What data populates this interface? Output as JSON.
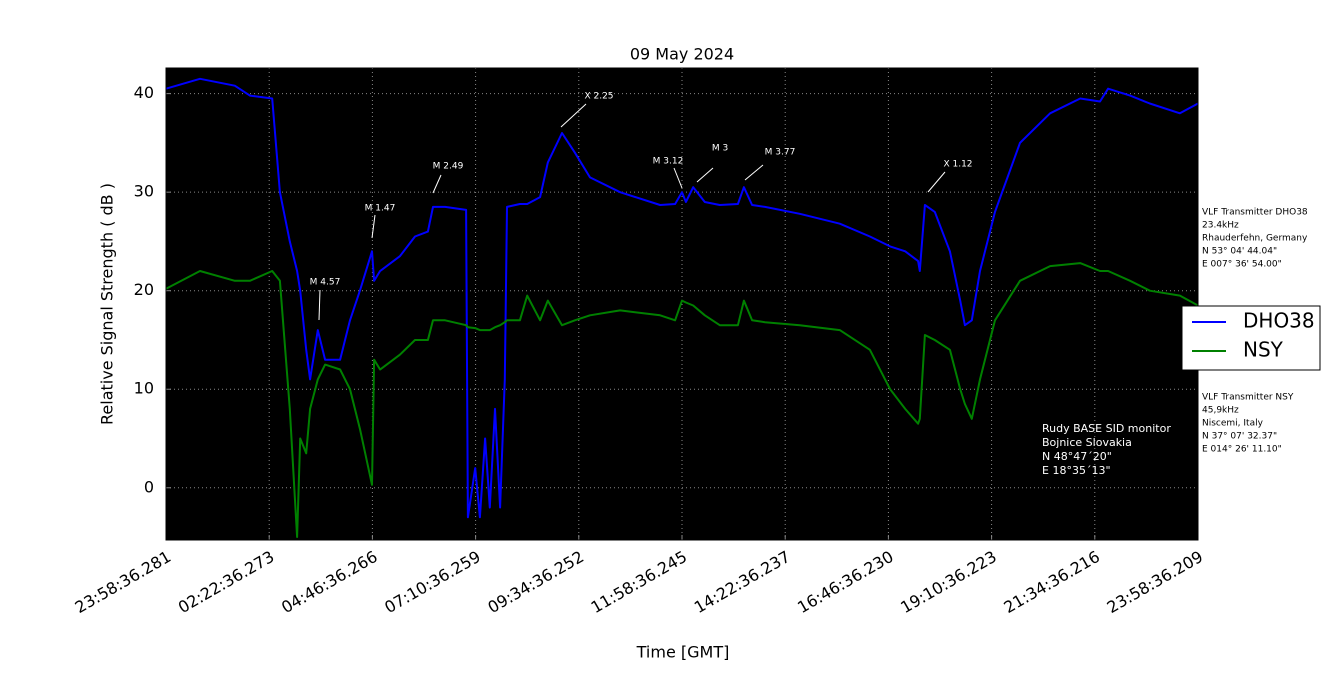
{
  "chart_data": {
    "type": "line",
    "title": "09 May 2024",
    "xlabel": "Time [GMT]",
    "ylabel": "Relative Signal Strength ( dB )",
    "x": [
      0,
      0.79,
      1.6,
      1.95,
      2.47,
      2.65,
      2.88,
      3.05,
      3.12,
      3.26,
      3.35,
      3.53,
      3.7,
      4.05,
      4.28,
      4.51,
      4.79,
      4.84,
      4.98,
      5.44,
      5.79,
      6.09,
      6.21,
      6.49,
      6.98,
      7.02,
      7.19,
      7.3,
      7.42,
      7.53,
      7.65,
      7.77,
      7.88,
      7.93,
      8.23,
      8.4,
      8.7,
      8.88,
      9.21,
      9.51,
      9.86,
      10.56,
      11.49,
      11.84,
      12.0,
      12.09,
      12.26,
      12.53,
      12.88,
      13.3,
      13.44,
      13.63,
      13.93,
      14.74,
      15.67,
      16.37,
      16.84,
      17.19,
      17.49,
      17.53,
      17.65,
      17.88,
      18.23,
      18.47,
      18.58,
      18.74,
      18.93,
      19.28,
      19.86,
      20.56,
      21.26,
      21.72,
      21.91,
      22.42,
      22.88,
      23.58,
      24
    ],
    "series": [
      {
        "name": "DHO38",
        "color": "#0000ff",
        "values": [
          40.5,
          41.5,
          40.8,
          39.8,
          39.5,
          30,
          25,
          22,
          20,
          14,
          11,
          16,
          13,
          13,
          17,
          20,
          24,
          21,
          22,
          23.5,
          25.5,
          26,
          28.5,
          28.5,
          28.2,
          -3,
          2,
          -3,
          5,
          -2,
          8,
          -2,
          11,
          28.5,
          28.8,
          28.8,
          29.5,
          33,
          36,
          34,
          31.5,
          30,
          28.7,
          28.8,
          30,
          29,
          30.5,
          29,
          28.7,
          28.8,
          30.5,
          28.7,
          28.5,
          27.8,
          26.8,
          25.5,
          24.5,
          24,
          23,
          22,
          28.7,
          28,
          24,
          19,
          16.5,
          17,
          22,
          28,
          35,
          38,
          39.5,
          39.2,
          40.5,
          39.8,
          39,
          38,
          39
        ]
      },
      {
        "name": "NSY",
        "color": "#008000",
        "values": [
          20.2,
          22,
          21,
          21,
          22,
          21,
          8,
          -5,
          5,
          3.5,
          8,
          11,
          12.5,
          12,
          10,
          6,
          0.3,
          13,
          12,
          13.5,
          15,
          15,
          17,
          17,
          16.5,
          16.3,
          16.2,
          16,
          16,
          16,
          16.3,
          16.5,
          16.8,
          17,
          17,
          19.5,
          17,
          19,
          16.5,
          17,
          17.5,
          18,
          17.5,
          17,
          19,
          18.8,
          18.5,
          17.5,
          16.5,
          16.5,
          19,
          17,
          16.8,
          16.5,
          16,
          14,
          10,
          8,
          6.5,
          7,
          15.5,
          15,
          14,
          10,
          8.5,
          7,
          11,
          17,
          21,
          22.5,
          22.8,
          22,
          22,
          21,
          20,
          19.5,
          18.5
        ]
      }
    ],
    "xlim": [
      0,
      24
    ],
    "xticks": [
      {
        "value": 0,
        "label": "23:58:36.281"
      },
      {
        "value": 2.4,
        "label": "02:22:36.273"
      },
      {
        "value": 4.8,
        "label": "04:46:36.266"
      },
      {
        "value": 7.2,
        "label": "07:10:36.259"
      },
      {
        "value": 9.6,
        "label": "09:34:36.252"
      },
      {
        "value": 12,
        "label": "11:58:36.245"
      },
      {
        "value": 14.4,
        "label": "14:22:36.237"
      },
      {
        "value": 16.8,
        "label": "16:46:36.230"
      },
      {
        "value": 19.2,
        "label": "19:10:36.223"
      },
      {
        "value": 21.6,
        "label": "21:34:36.216"
      },
      {
        "value": 24,
        "label": "23:58:36.209"
      }
    ],
    "ylim": [
      -5.3,
      42.6
    ],
    "yticks": [
      0,
      10,
      20,
      30,
      40
    ],
    "grid": true,
    "background": "#000000",
    "annotations": [
      "M 4.57",
      "M 1.47",
      "M 2.49",
      "X 2.25",
      "M 3.12",
      "M 3",
      "M 3.77",
      "X 1.12"
    ],
    "transmitter_notes": [
      [
        "VLF Transmitter DHO38",
        "23.4kHz",
        "Rhauderfehn, Germany",
        "N 53° 04' 44.04\"",
        "E 007° 36' 54.00\""
      ],
      [
        "VLF Transmitter NSY",
        "45,9kHz",
        "Niscemi, Italy",
        "N 37° 07' 32.37\"",
        "E 014° 26' 11.10\""
      ]
    ],
    "station_note": [
      "Rudy BASE SID monitor",
      "Bojnice Slovakia",
      "N 48°47´20\"",
      "E 18°35´13\""
    ]
  }
}
